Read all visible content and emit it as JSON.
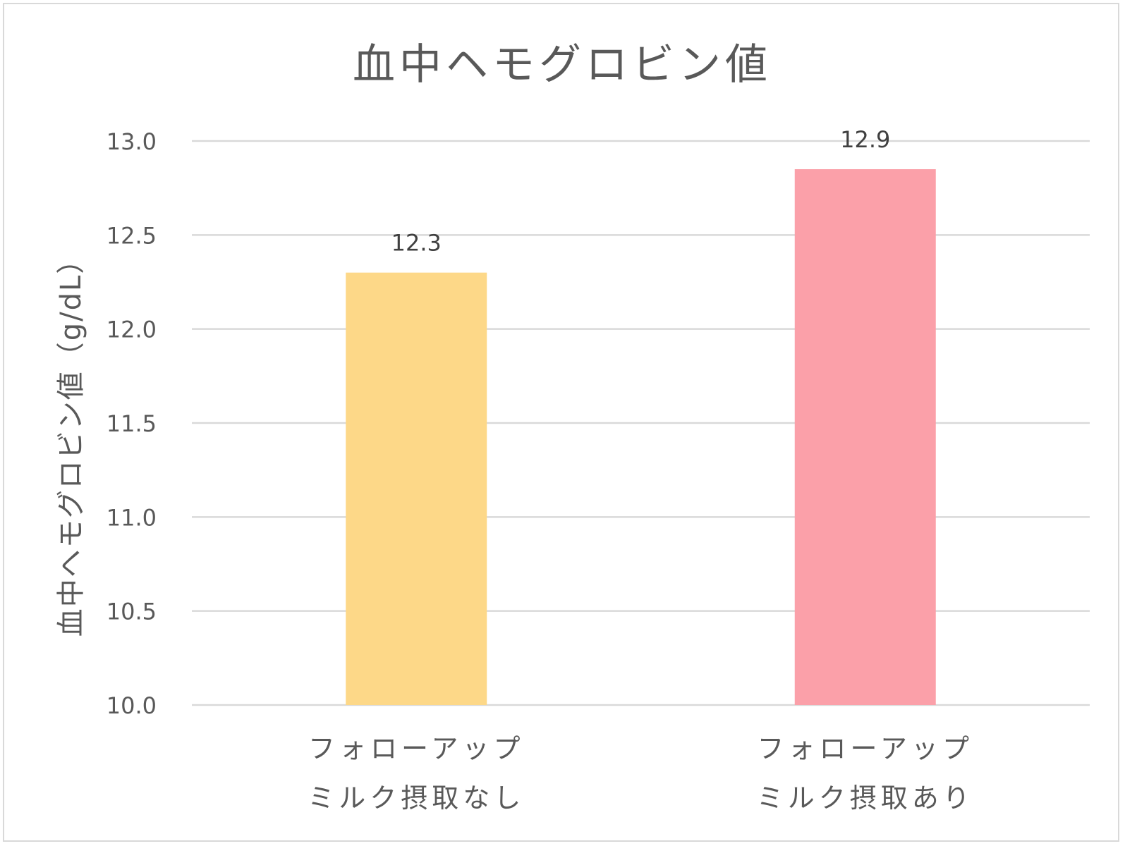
{
  "chart_data": {
    "type": "bar",
    "title": "血中ヘモグロビン値",
    "ylabel": "血中ヘモグロビン値（g/dL）",
    "xlabel": "",
    "ylim": [
      10.0,
      13.0
    ],
    "ytick_step": 0.5,
    "yticks": [
      "10.0",
      "10.5",
      "11.0",
      "11.5",
      "12.0",
      "12.5",
      "13.0"
    ],
    "grid": true,
    "legend": "none",
    "categories": [
      [
        "フォローアップ",
        "ミルク摂取なし"
      ],
      [
        "フォローアップ",
        "ミルク摂取あり"
      ]
    ],
    "values": [
      12.3,
      12.85
    ],
    "data_labels": [
      "12.3",
      "12.9"
    ],
    "colors": [
      "#fdd888",
      "#fba0a9"
    ]
  }
}
